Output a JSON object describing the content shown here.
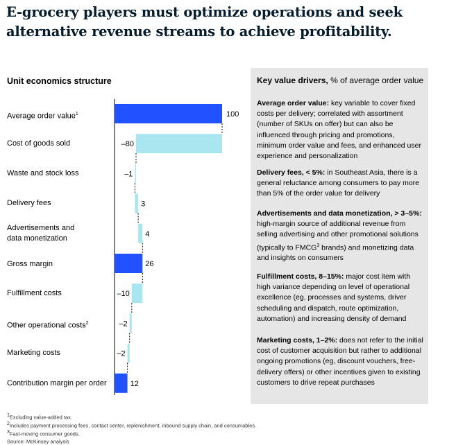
{
  "title": "E-grocery players must optimize operations and seek alternative revenue streams to achieve profitability.",
  "chart_title": "Unit economics structure",
  "chart_data": {
    "type": "bar",
    "subtype": "waterfall",
    "title": "Unit economics structure",
    "categories": [
      "Average order value",
      "Cost of goods sold",
      "Waste and stock loss",
      "Delivery fees",
      "Advertisements and data monetization",
      "Gross margin",
      "Fulfillment costs",
      "Other operational costs",
      "Marketing costs",
      "Contribution margin per order"
    ],
    "values": [
      100,
      -80,
      -1,
      3,
      4,
      26,
      -10,
      -2,
      -2,
      12
    ],
    "value_labels": [
      "100",
      "–80",
      "–1",
      "3",
      "4",
      "26",
      "–10",
      "–2",
      "–2",
      "12"
    ],
    "bar_kinds": [
      "total",
      "delta",
      "delta",
      "delta",
      "delta",
      "total",
      "delta",
      "delta",
      "delta",
      "total"
    ],
    "xlim": [
      0,
      100
    ],
    "colors": {
      "total": "#2251ff",
      "delta": "#aae6f0",
      "connector": "#000000",
      "axis": "#000000"
    }
  },
  "rows": [
    {
      "label": "Average order value",
      "sup": "1"
    },
    {
      "label": "Cost of goods sold",
      "sup": ""
    },
    {
      "label": "Waste and stock loss",
      "sup": ""
    },
    {
      "label": "Delivery fees",
      "sup": ""
    },
    {
      "label": "Advertisements and\ndata monetization",
      "sup": ""
    },
    {
      "label": "Gross margin",
      "sup": ""
    },
    {
      "label": "Fulfillment costs",
      "sup": ""
    },
    {
      "label": "Other operational costs",
      "sup": "2"
    },
    {
      "label": "Marketing costs",
      "sup": ""
    },
    {
      "label": "Contribution margin per order",
      "sup": ""
    }
  ],
  "panel": {
    "title_bold": "Key value drivers,",
    "title_rest": " % of average order value",
    "drivers": [
      {
        "bold": "Average order value:",
        "text": " key variable to cover fixed costs per delivery; correlated with assortment (number of SKUs on offer) but can also be influenced through pricing and promotions, minimum order value and fees, and enhanced user experience and personalization"
      },
      {
        "bold": "Delivery fees, < 5%:",
        "text": " in Southeast Asia, there is a general reluctance among consumers to pay more than 5% of the order value for delivery"
      },
      {
        "bold": "Advertisements and data monetization, > 3–5%:",
        "text": " high-margin source of additional revenue from selling advertising and other promotional solutions (typically to FMCG",
        "sup": "3",
        "text_after": " brands) and monetizing data and insights on consumers"
      },
      {
        "bold": "Fulfillment costs, 8–15%:",
        "text": " major cost item with high variance depending on level of operational excellence (eg, processes and systems, driver scheduling and dispatch, route optimization, automation) and increasing density of demand"
      },
      {
        "bold": "Marketing costs, 1–2%:",
        "text": " does not refer to the initial cost of customer acquisition but rather to additional ongoing promotions (eg, discount vouchers, free-delivery offers) or other incentives given to existing customers to drive repeat purchases"
      }
    ]
  },
  "notes": [
    {
      "sup": "1",
      "text": "Excluding value-added tax."
    },
    {
      "sup": "2",
      "text": "Includes payment processing fees, contact center, replenishment, inbound supply chain, and consumables."
    },
    {
      "sup": "3",
      "text": "Fast-moving consumer goods."
    },
    {
      "sup": "",
      "text": "Source: McKinsey analysis"
    }
  ]
}
